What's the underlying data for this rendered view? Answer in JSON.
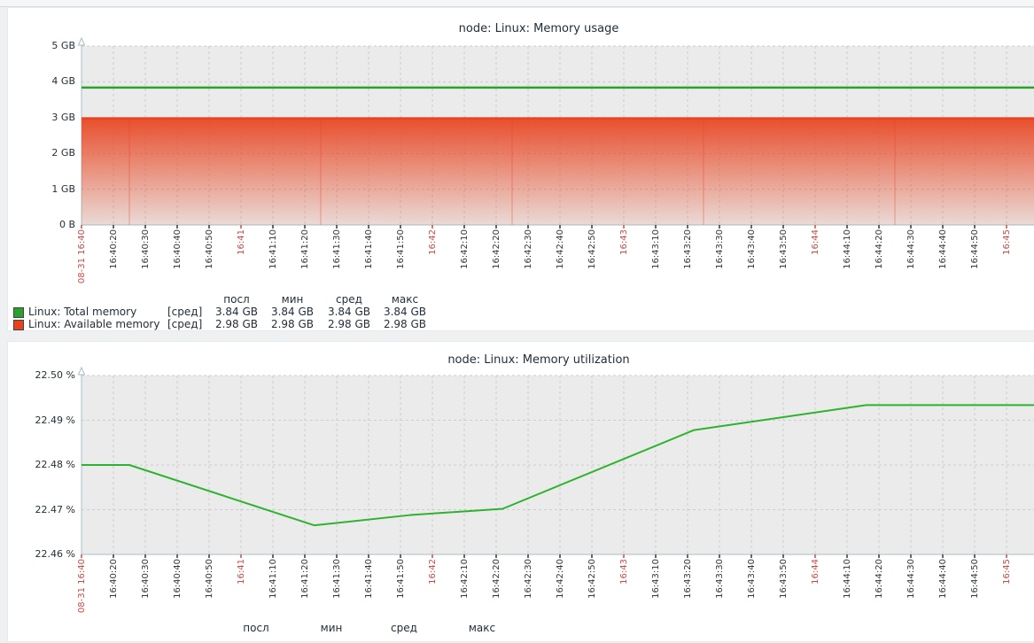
{
  "page": {
    "colors": {
      "page_bg": "#eef0f2",
      "panel_bg": "#ffffff",
      "plot_bg": "#ebebeb",
      "grid": "#c9ced2",
      "axis": "#a9bfc8",
      "tick_minor": "#2e373c",
      "tick_major": "#cc4a46",
      "title_text": "#1f2d38",
      "legend_text": "#1f2d38"
    }
  },
  "x_ticks": [
    {
      "label": "08-31 16:40",
      "major": true
    },
    {
      "label": "16:40:20",
      "major": false
    },
    {
      "label": "16:40:30",
      "major": false
    },
    {
      "label": "16:40:40",
      "major": false
    },
    {
      "label": "16:40:50",
      "major": false
    },
    {
      "label": "16:41",
      "major": true
    },
    {
      "label": "16:41:10",
      "major": false
    },
    {
      "label": "16:41:20",
      "major": false
    },
    {
      "label": "16:41:30",
      "major": false
    },
    {
      "label": "16:41:40",
      "major": false
    },
    {
      "label": "16:41:50",
      "major": false
    },
    {
      "label": "16:42",
      "major": true
    },
    {
      "label": "16:42:10",
      "major": false
    },
    {
      "label": "16:42:20",
      "major": false
    },
    {
      "label": "16:42:30",
      "major": false
    },
    {
      "label": "16:42:40",
      "major": false
    },
    {
      "label": "16:42:50",
      "major": false
    },
    {
      "label": "16:43",
      "major": true
    },
    {
      "label": "16:43:10",
      "major": false
    },
    {
      "label": "16:43:20",
      "major": false
    },
    {
      "label": "16:43:30",
      "major": false
    },
    {
      "label": "16:43:40",
      "major": false
    },
    {
      "label": "16:43:50",
      "major": false
    },
    {
      "label": "16:44",
      "major": true
    },
    {
      "label": "16:44:10",
      "major": false
    },
    {
      "label": "16:44:20",
      "major": false
    },
    {
      "label": "16:44:30",
      "major": false
    },
    {
      "label": "16:44:40",
      "major": false
    },
    {
      "label": "16:44:50",
      "major": false
    },
    {
      "label": "16:45",
      "major": true
    }
  ],
  "charts": [
    {
      "title": "node: Linux: Memory usage",
      "y_labels": [
        "5 GB",
        "4 GB",
        "3 GB",
        "2 GB",
        "1 GB",
        "0 B"
      ],
      "legend": {
        "headers": [
          "посл",
          "мин",
          "сред",
          "макс"
        ],
        "rows": [
          {
            "name": "Linux: Total memory",
            "func": "[сред]",
            "color": "#2ca02c",
            "values": [
              "3.84 GB",
              "3.84 GB",
              "3.84 GB",
              "3.84 GB"
            ]
          },
          {
            "name": "Linux: Available memory",
            "func": "[сред]",
            "color": "#e8431f",
            "values": [
              "2.98 GB",
              "2.98 GB",
              "2.98 GB",
              "2.98 GB"
            ]
          }
        ]
      }
    },
    {
      "title": "node: Linux: Memory utilization",
      "y_labels": [
        "22.50 %",
        "22.49 %",
        "22.48 %",
        "22.47 %",
        "22.46 %"
      ],
      "legend": {
        "headers": [
          "посл",
          "мин",
          "сред",
          "макс"
        ],
        "rows": []
      }
    }
  ],
  "chart_data": [
    {
      "type": "area",
      "title": "node: Linux: Memory usage",
      "x_axis": "time, 10 s ticks from 08-31 16:40 to 16:45",
      "x_unit": "seconds since first tick",
      "ylim": [
        0,
        5
      ],
      "y_unit": "GB",
      "grid": true,
      "legend_position": "bottom",
      "series": [
        {
          "name": "Linux: Total memory",
          "draw": "line",
          "color": "#27a427",
          "points": [
            [
              0,
              3.84
            ],
            [
              299,
              3.84
            ]
          ]
        },
        {
          "name": "Linux: Available memory",
          "draw": "gradient-area",
          "color": "#e8431f",
          "points": [
            [
              0,
              2.98
            ],
            [
              299,
              2.98
            ]
          ],
          "seam_offsets_s": [
            15,
            75,
            135,
            195,
            255
          ]
        }
      ],
      "stats": {
        "headers": [
          "посл",
          "мин",
          "сред",
          "макс"
        ],
        "Linux: Total memory": [
          "3.84 GB",
          "3.84 GB",
          "3.84 GB",
          "3.84 GB"
        ],
        "Linux: Available memory": [
          "2.98 GB",
          "2.98 GB",
          "2.98 GB",
          "2.98 GB"
        ]
      }
    },
    {
      "type": "line",
      "title": "node: Linux: Memory utilization",
      "x_axis": "time, 10 s ticks from 08-31 16:40 to 16:45",
      "x_unit": "seconds since first tick",
      "ylim": [
        22.46,
        22.5
      ],
      "y_unit": "%",
      "grid": true,
      "series": [
        {
          "name": "Linux: Memory utilization",
          "draw": "line",
          "color": "#2db32d",
          "points": [
            [
              0,
              22.48
            ],
            [
              15,
              22.48
            ],
            [
              73,
              22.4665
            ],
            [
              103,
              22.4688
            ],
            [
              132,
              22.4702
            ],
            [
              192,
              22.4878
            ],
            [
              246,
              22.4934
            ],
            [
              299,
              22.4934
            ]
          ]
        }
      ]
    }
  ]
}
